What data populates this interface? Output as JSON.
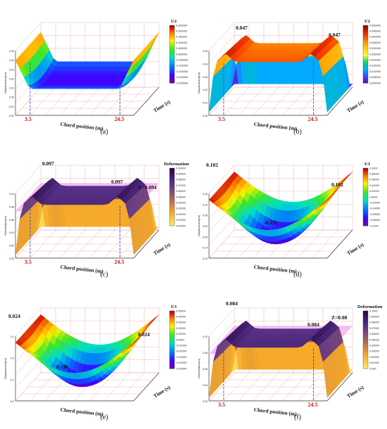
{
  "figure": {
    "panels": [
      {
        "id": "a",
        "caption": "(a)",
        "legend_title": "U2",
        "legend_ticks": [
          "0.250000",
          "0.200000",
          "0.150000",
          "0.100000",
          "0.050000",
          "0.000000",
          "-0.050000",
          "-0.100000",
          "-0.150000",
          "-0.200000",
          "-0.250000"
        ],
        "colormap": "rainbow",
        "surface": "trough",
        "xlabel": "Chord position (m)",
        "ylabel": "Time (s)",
        "zlabel": "Displacement(m)",
        "z_ticks": [
          "0.05",
          "0.04",
          "0.03",
          "0.02",
          "0.01",
          "0.00",
          "-0.01",
          "-0.02"
        ],
        "x_marks": [
          "3.5",
          "24.5"
        ],
        "annotations": []
      },
      {
        "id": "b",
        "caption": "(b)",
        "legend_title": "U2",
        "legend_ticks": [
          "0.050000",
          "0.045000",
          "0.040000",
          "0.035000",
          "0.030000",
          "0.025000",
          "0.020000",
          "0.015000",
          "0.010000",
          "0.005000",
          "0.000000"
        ],
        "colormap": "hot",
        "surface": "plateau",
        "xlabel": "Chord position (m)",
        "ylabel": "Time (s)",
        "zlabel": "Displacement(m)",
        "z_ticks": [
          "0.05",
          "0.04",
          "0.03",
          "0.02",
          "0.01",
          "0.00"
        ],
        "x_marks": [
          "3.5",
          "24.5"
        ],
        "annotations": [
          "0.047",
          "0.047"
        ]
      },
      {
        "id": "c",
        "caption": "(c)",
        "legend_title": "Deformation",
        "legend_ticks": [
          "0.10000",
          "0.09000",
          "0.08000",
          "0.07000",
          "0.06000",
          "0.05000",
          "0.04000",
          "0.03000",
          "0.02000",
          "0.01000",
          "0.00000"
        ],
        "colormap": "purple-yellow",
        "surface": "plateau-plane",
        "xlabel": "Chord position (m)",
        "ylabel": "Time (s)",
        "zlabel": "Deformation(m)",
        "z_ticks": [
          "0.10",
          "0.08",
          "0.06",
          "0.04",
          "0.02",
          "0.00"
        ],
        "x_marks": [
          "3.5",
          "24.5"
        ],
        "annotations": [
          "0.097",
          "0.097",
          "Y=0.094"
        ]
      },
      {
        "id": "d",
        "caption": "(d)",
        "legend_title": "U3",
        "legend_ticks": [
          "0.1000",
          "0.08000",
          "0.06000",
          "0.04000",
          "0.02000",
          "0.0000",
          "-0.02000",
          "-0.04000",
          "-0.06000",
          "-0.08000",
          "-0.1000"
        ],
        "colormap": "rainbow",
        "surface": "bowl",
        "xlabel": "Chord position (m)",
        "ylabel": "Time (s)",
        "zlabel": "Displacement(m)",
        "z_ticks": [
          "0.15",
          "0.10",
          "0.05",
          "0.00",
          "-0.05",
          "-0.10",
          "-0.15"
        ],
        "x_marks": [],
        "annotations": [
          "0.102",
          "0.102",
          "-0.131"
        ]
      },
      {
        "id": "e",
        "caption": "(e)",
        "legend_title": "U3",
        "legend_ticks": [
          "0.05000",
          "0.04000",
          "0.03000",
          "0.02000",
          "0.01000",
          "0.0000",
          "-0.01000",
          "-0.02000",
          "-0.03000",
          "-0.04000",
          "-0.05000"
        ],
        "colormap": "rainbow",
        "surface": "bowl",
        "xlabel": "Chord position (m)",
        "ylabel": "Time (s)",
        "zlabel": "Displacement(m)",
        "z_ticks": [
          "0.1",
          "0.0",
          "-0.1",
          "-0.2"
        ],
        "x_marks": [],
        "annotations": [
          "0.024",
          "0.024",
          "0.196"
        ]
      },
      {
        "id": "f",
        "caption": "(f)",
        "legend_title": "Deformation",
        "legend_ticks": [
          "0.1000",
          "0.09000",
          "0.08000",
          "0.07000",
          "0.06000",
          "0.05000",
          "0.04000",
          "0.03000",
          "0.02000",
          "0.01000",
          "0.000"
        ],
        "colormap": "purple-yellow",
        "surface": "plateau-plane",
        "xlabel": "Chord position (m)",
        "ylabel": "Time (s)",
        "zlabel": "Deformation(m)",
        "z_ticks": [
          "0.10",
          "0.08",
          "0.06",
          "0.04",
          "0.02"
        ],
        "x_marks": [
          "3.5",
          "24.5"
        ],
        "annotations": [
          "0.084",
          "0.084",
          "Z=0.08"
        ]
      }
    ]
  }
}
